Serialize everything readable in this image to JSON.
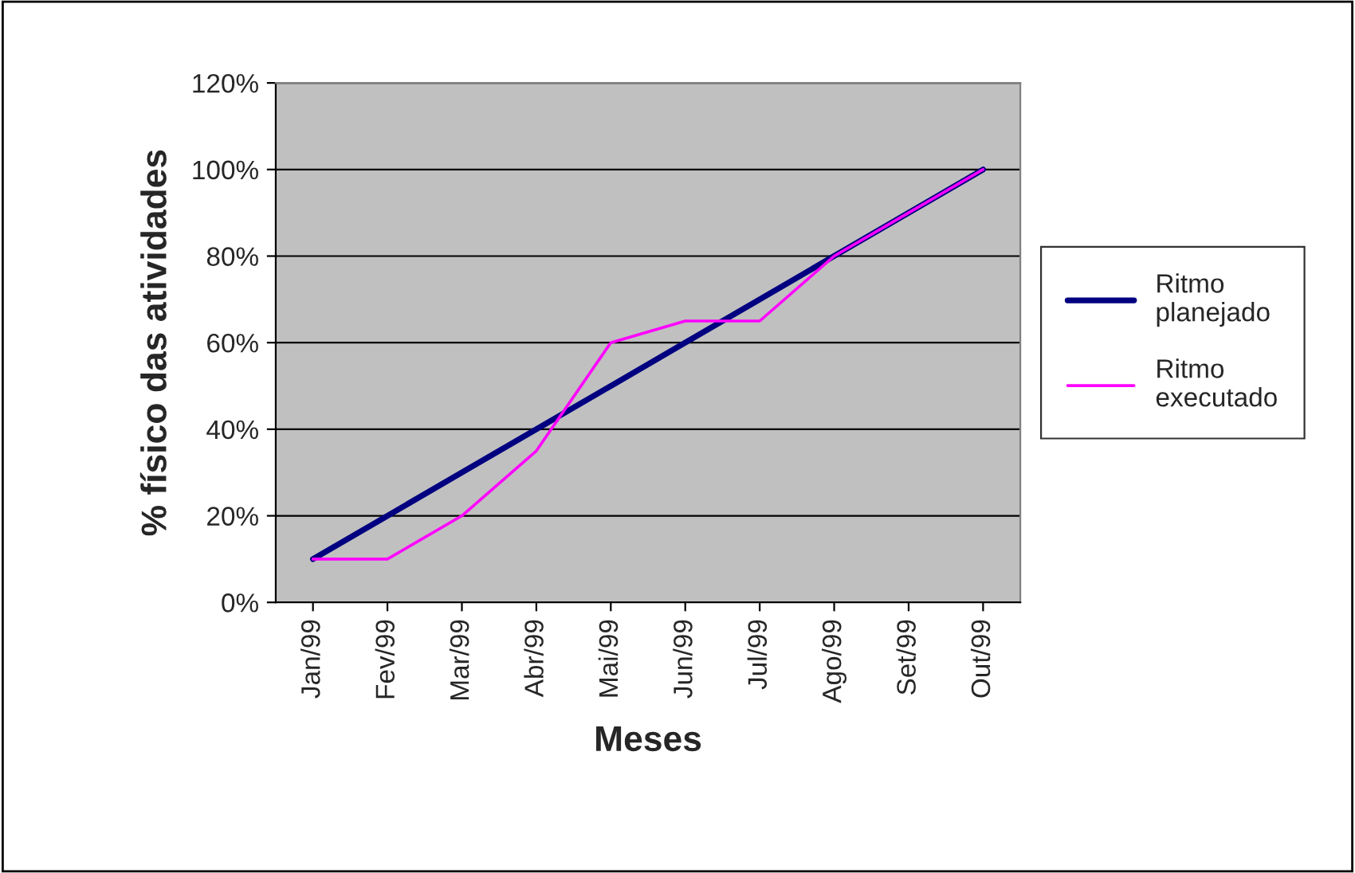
{
  "chart_data": {
    "type": "line",
    "xlabel": "Meses",
    "ylabel": "% físico das atividades",
    "categories": [
      "Jan/99",
      "Fev/99",
      "Mar/99",
      "Abr/99",
      "Mai/99",
      "Jun/99",
      "Jul/99",
      "Ago/99",
      "Set/99",
      "Out/99"
    ],
    "series": [
      {
        "name": "Ritmo planejado",
        "color": "#000080",
        "values": [
          10,
          20,
          30,
          40,
          50,
          60,
          70,
          80,
          90,
          100
        ]
      },
      {
        "name": "Ritmo executado",
        "color": "#ff00ff",
        "values": [
          10,
          10,
          20,
          35,
          60,
          65,
          65,
          80,
          90,
          100
        ]
      }
    ],
    "ylim": [
      0,
      120
    ],
    "yticks": [
      {
        "value": 0,
        "label": "0%"
      },
      {
        "value": 20,
        "label": "20%"
      },
      {
        "value": 40,
        "label": "40%"
      },
      {
        "value": 60,
        "label": "60%"
      },
      {
        "value": 80,
        "label": "80%"
      },
      {
        "value": 100,
        "label": "100%"
      },
      {
        "value": 120,
        "label": "120%"
      }
    ],
    "grid": "y",
    "legend": "right",
    "marker": "none",
    "line_style": "solid"
  }
}
